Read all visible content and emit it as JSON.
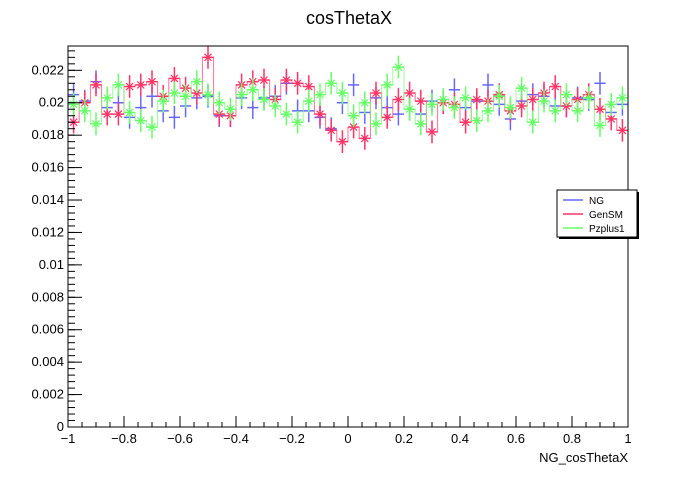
{
  "chart_data": {
    "type": "line",
    "title": "cosThetaX",
    "xlabel": "NG_cosThetaX",
    "ylabel": "",
    "xlim": [
      -1,
      1
    ],
    "ylim": [
      0,
      0.0235
    ],
    "x_ticks": [
      "−1",
      "−0.8",
      "−0.6",
      "−0.4",
      "−0.2",
      "0",
      "0.2",
      "0.4",
      "0.6",
      "0.8",
      "1"
    ],
    "y_ticks": [
      "0",
      "0.002",
      "0.004",
      "0.006",
      "0.008",
      "0.01",
      "0.012",
      "0.014",
      "0.016",
      "0.018",
      "0.02",
      "0.022"
    ],
    "x_tick_values": [
      -1,
      -0.8,
      -0.6,
      -0.4,
      -0.2,
      0,
      0.2,
      0.4,
      0.6,
      0.8,
      1
    ],
    "y_tick_values": [
      0,
      0.002,
      0.004,
      0.006,
      0.008,
      0.01,
      0.012,
      0.014,
      0.016,
      0.018,
      0.02,
      0.022
    ],
    "bins": 50,
    "legend_position": "right",
    "series": [
      {
        "name": "NG",
        "color": "#6666ff",
        "marker": "cross",
        "values": [
          0.0205,
          0.0201,
          0.0213,
          0.0197,
          0.02,
          0.0191,
          0.0197,
          0.0204,
          0.0195,
          0.0191,
          0.0198,
          0.0203,
          0.0204,
          0.0192,
          0.0192,
          0.0203,
          0.0197,
          0.0203,
          0.0204,
          0.0212,
          0.0195,
          0.0195,
          0.0191,
          0.0184,
          0.02,
          0.0211,
          0.0194,
          0.0203,
          0.0197,
          0.0193,
          0.0196,
          0.0193,
          0.0201,
          0.02,
          0.0208,
          0.0197,
          0.0201,
          0.0211,
          0.0199,
          0.019,
          0.0201,
          0.0205,
          0.0204,
          0.0198,
          0.0198,
          0.0203,
          0.0202,
          0.0212,
          0.0194,
          0.0199
        ]
      },
      {
        "name": "GenSM",
        "color": "#ff3366",
        "marker": "star",
        "values": [
          0.0188,
          0.02,
          0.0211,
          0.0193,
          0.0193,
          0.021,
          0.0211,
          0.0213,
          0.0204,
          0.0215,
          0.0209,
          0.0206,
          0.0228,
          0.0193,
          0.0192,
          0.0211,
          0.0213,
          0.0214,
          0.0202,
          0.0214,
          0.0212,
          0.021,
          0.0193,
          0.0183,
          0.0176,
          0.0185,
          0.0178,
          0.0206,
          0.0191,
          0.0202,
          0.0206,
          0.0201,
          0.0182,
          0.02,
          0.0199,
          0.0188,
          0.0202,
          0.0201,
          0.0205,
          0.0195,
          0.0198,
          0.0202,
          0.0206,
          0.021,
          0.0198,
          0.0202,
          0.0205,
          0.0196,
          0.019,
          0.0183
        ]
      },
      {
        "name": "Pzplus1",
        "color": "#66ff66",
        "marker": "star",
        "values": [
          0.0199,
          0.0195,
          0.0187,
          0.0203,
          0.0211,
          0.0194,
          0.0189,
          0.0185,
          0.0201,
          0.0206,
          0.0204,
          0.0213,
          0.0205,
          0.02,
          0.0196,
          0.0205,
          0.0208,
          0.0202,
          0.0198,
          0.0193,
          0.0188,
          0.0201,
          0.0205,
          0.0212,
          0.0206,
          0.0192,
          0.02,
          0.0187,
          0.0211,
          0.0222,
          0.0196,
          0.0187,
          0.0199,
          0.0202,
          0.0197,
          0.0203,
          0.0189,
          0.0195,
          0.0204,
          0.0197,
          0.0209,
          0.0188,
          0.0201,
          0.0195,
          0.0205,
          0.0195,
          0.0203,
          0.0186,
          0.0199,
          0.0203
        ]
      }
    ]
  }
}
